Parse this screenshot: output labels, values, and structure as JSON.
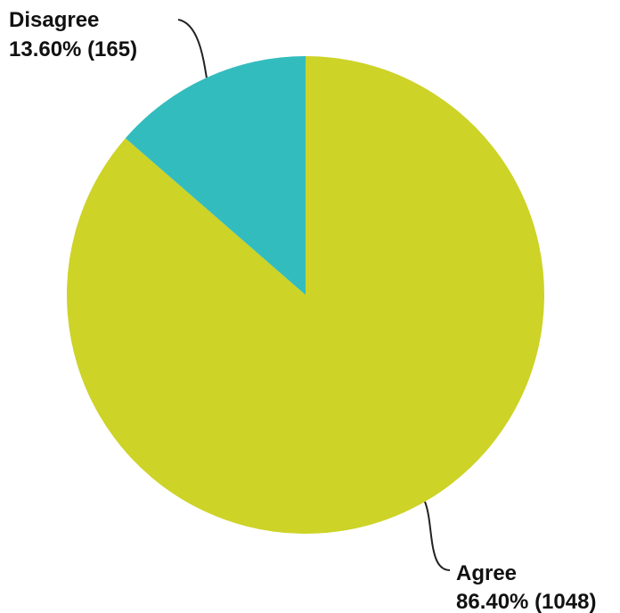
{
  "chart_data": {
    "type": "pie",
    "slices": [
      {
        "label": "Agree",
        "percent_text": "86.40% (1048)",
        "value": 1048,
        "percent": 86.4,
        "color": "#cdd327"
      },
      {
        "label": "Disagree",
        "percent_text": "13.60% (165)",
        "value": 165,
        "percent": 13.6,
        "color": "#33bcbe"
      }
    ],
    "start_angle_deg": 0,
    "direction": "clockwise",
    "leader_line_color": "#222222"
  }
}
